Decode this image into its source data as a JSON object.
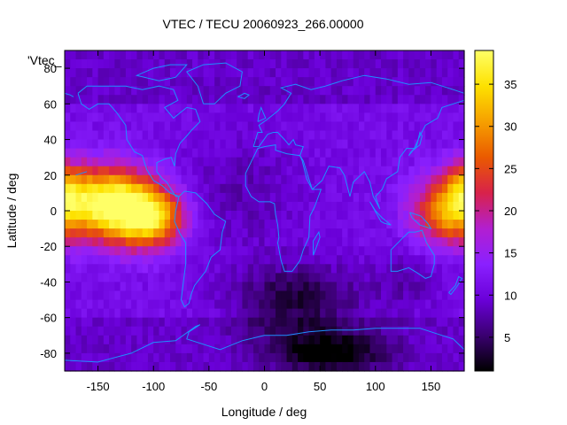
{
  "chart_data": {
    "type": "heatmap",
    "title": "VTEC / TECU 20060923_266.00000",
    "xlabel": "Longitude / deg",
    "ylabel": "Latitude / deg",
    "series_label": "'Vtec_",
    "xlim": [
      -180,
      180
    ],
    "ylim": [
      -90,
      90
    ],
    "x_ticks": [
      "-150",
      "-100",
      "-50",
      "0",
      "50",
      "100",
      "150"
    ],
    "y_ticks": [
      "80",
      "60",
      "40",
      "20",
      "0",
      "-20",
      "-40",
      "-60",
      "-80"
    ],
    "colorbar": {
      "range": [
        1,
        39
      ],
      "ticks": [
        "35",
        "30",
        "25",
        "20",
        "15",
        "10",
        "5"
      ],
      "palette": [
        "#000000",
        "#3a0070",
        "#6a00d8",
        "#8a20ff",
        "#b21fd0",
        "#d8224a",
        "#ea5a00",
        "#f6a000",
        "#fde100",
        "#ffff66"
      ]
    },
    "grid_step_deg": 5,
    "features": [
      {
        "lon": -145,
        "lat": 5,
        "value": 35,
        "sx": 25,
        "sy": 14
      },
      {
        "lon": -110,
        "lat": -2,
        "value": 33,
        "sx": 22,
        "sy": 13
      },
      {
        "lon": -90,
        "lat": -5,
        "value": 18,
        "sx": 18,
        "sy": 10
      },
      {
        "lon": 165,
        "lat": 0,
        "value": 30,
        "sx": 22,
        "sy": 13
      },
      {
        "lon": 180,
        "lat": 15,
        "value": 20,
        "sx": 12,
        "sy": 10
      },
      {
        "lon": 130,
        "lat": -40,
        "value": 8,
        "sx": 25,
        "sy": 12
      },
      {
        "lon": 30,
        "lat": -50,
        "value": 3,
        "sx": 40,
        "sy": 14
      },
      {
        "lon": 60,
        "lat": -80,
        "value": 2,
        "sx": 35,
        "sy": 8
      },
      {
        "lon": -20,
        "lat": 10,
        "value": 8,
        "sx": 40,
        "sy": 25
      }
    ]
  },
  "colors": {
    "coastline": "#1e90ff",
    "background_value": 11
  }
}
